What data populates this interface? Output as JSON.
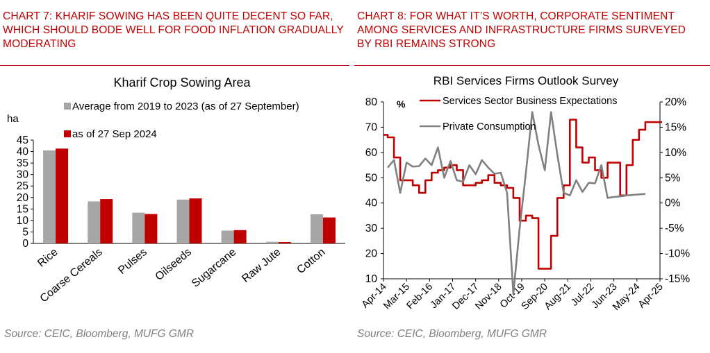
{
  "left": {
    "heading": "CHART 7: KHARIF SOWING HAS BEEN QUITE DECENT SO FAR, WHICH SHOULD BODE WELL FOR FOOD INFLATION GRADUALLY MODERATING",
    "source": "Source: CEIC, Bloomberg, MUFG GMR"
  },
  "right": {
    "heading": "CHART 8: FOR WHAT IT’S WORTH, CORPORATE SENTIMENT AMONG SERVICES AND INFRASTRUCTURE FIRMS SURVEYED BY RBI REMAINS STRONG",
    "source": "Source: CEIC, Bloomberg, MUFG GMR"
  },
  "colors": {
    "red": "#c00000",
    "gray": "#a6a6a6",
    "dark_gray": "#808080",
    "heading_red": "#c00000"
  },
  "chart_data": [
    {
      "type": "bar",
      "title": "Kharif Crop Sowing Area",
      "ylabel": "ha",
      "ylim": [
        0,
        45
      ],
      "yticks": [
        "0",
        "5",
        "10",
        "15",
        "20",
        "25",
        "30",
        "35",
        "40",
        "45"
      ],
      "categories": [
        "Rice",
        "Coarse Cereals",
        "Pulses",
        "Oilseeds",
        "Sugarcane",
        "Raw Jute",
        "Cotton"
      ],
      "series": [
        {
          "name": "Average from 2019 to 2023 (as of 27 September)",
          "color": "#a6a6a6",
          "values": [
            40.5,
            18.3,
            13.4,
            19.1,
            5.6,
            0.7,
            12.7
          ]
        },
        {
          "name": "as of 27 Sep 2024",
          "color": "#c00000",
          "values": [
            41.3,
            19.3,
            12.8,
            19.6,
            5.8,
            0.6,
            11.3
          ]
        }
      ],
      "legend_position": "top",
      "grid": false
    },
    {
      "type": "line",
      "title": "RBI Services Firms Outlook Survey",
      "left_axis": {
        "label": "%",
        "ylim": [
          10,
          80
        ],
        "ticks": [
          "10",
          "20",
          "30",
          "40",
          "50",
          "60",
          "70",
          "80"
        ]
      },
      "right_axis": {
        "ylim": [
          -15,
          20
        ],
        "ticks": [
          "-15%",
          "-10%",
          "-5%",
          "0%",
          "5%",
          "10%",
          "15%",
          "20%"
        ]
      },
      "xlim": [
        "Apr-14",
        "Apr-25"
      ],
      "x_tick_labels": [
        "Apr-14",
        "Mar-15",
        "Feb-16",
        "Jan-17",
        "Dec-17",
        "Nov-18",
        "Oct-19",
        "Sep-20",
        "Aug-21",
        "Jul-22",
        "Jun-23",
        "May-24",
        "Apr-25"
      ],
      "legend_position": "top-left",
      "grid": false,
      "series": [
        {
          "name": "Services Sector Business Expectations",
          "axis": "left",
          "color": "#c00000",
          "style": "step",
          "x": [
            "2014-04",
            "2014-06",
            "2014-09",
            "2014-12",
            "2015-03",
            "2015-06",
            "2015-09",
            "2015-12",
            "2016-03",
            "2016-06",
            "2016-09",
            "2016-12",
            "2017-03",
            "2017-06",
            "2017-09",
            "2017-12",
            "2018-03",
            "2018-06",
            "2018-09",
            "2018-12",
            "2019-03",
            "2019-06",
            "2019-09",
            "2019-12",
            "2020-03",
            "2020-06",
            "2020-09",
            "2020-12",
            "2021-03",
            "2021-06",
            "2021-09",
            "2021-12",
            "2022-03",
            "2022-06",
            "2022-09",
            "2022-12",
            "2023-03",
            "2023-06",
            "2023-09",
            "2023-12",
            "2024-03",
            "2024-06",
            "2024-09",
            "2024-12",
            "2025-03"
          ],
          "values": [
            67,
            66,
            58,
            49,
            49,
            47,
            44,
            49,
            52,
            53,
            54,
            55,
            53,
            47,
            47,
            48,
            49,
            51,
            48,
            47,
            46,
            42,
            33,
            35,
            34,
            14,
            14,
            27,
            42,
            47,
            73,
            62,
            56,
            58,
            53,
            50,
            56,
            56,
            43,
            55,
            65,
            69,
            72,
            72,
            72
          ]
        },
        {
          "name": "Private Consumption",
          "axis": "right",
          "color": "#808080",
          "style": "line",
          "x": [
            "2014-06",
            "2014-09",
            "2014-12",
            "2015-03",
            "2015-06",
            "2015-09",
            "2015-12",
            "2016-03",
            "2016-06",
            "2016-09",
            "2016-12",
            "2017-03",
            "2017-06",
            "2017-09",
            "2017-12",
            "2018-03",
            "2018-06",
            "2018-09",
            "2018-12",
            "2019-03",
            "2019-06",
            "2019-09",
            "2019-12",
            "2020-03",
            "2020-06",
            "2020-09",
            "2020-12",
            "2021-03",
            "2021-06",
            "2021-09",
            "2021-12",
            "2022-03",
            "2022-06",
            "2022-09",
            "2022-12",
            "2023-03",
            "2023-06",
            "2023-09",
            "2023-12",
            "2024-03",
            "2024-06",
            "2024-09"
          ],
          "values": [
            7.0,
            8.5,
            2.0,
            8.0,
            7.2,
            7.3,
            8.8,
            7.5,
            11.0,
            5.0,
            8.3,
            4.5,
            4.2,
            7.5,
            5.7,
            8.5,
            7.0,
            5.8,
            6.0,
            2.0,
            -18.0,
            -5.0,
            6.0,
            18.0,
            11.5,
            6.5,
            18.0,
            9.5,
            2.0,
            1.5,
            4.5,
            2.2,
            4.0,
            3.9,
            7.5,
            1.0,
            1.2,
            1.3,
            1.5,
            1.6,
            1.7,
            1.8
          ]
        }
      ]
    }
  ]
}
